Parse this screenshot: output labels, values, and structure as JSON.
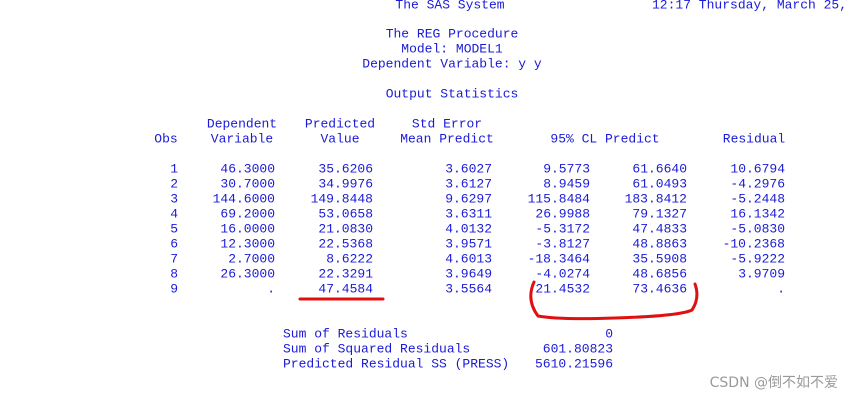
{
  "header": {
    "system": "The SAS System",
    "timestamp": "12:17 Thursday, March 25,"
  },
  "procedure": {
    "title": "The REG Procedure",
    "model": "Model: MODEL1",
    "dependent": "Dependent Variable: y y"
  },
  "section_title": "Output Statistics",
  "table": {
    "columns": [
      {
        "lines": [
          "Obs"
        ]
      },
      {
        "lines": [
          "Dependent",
          "Variable"
        ]
      },
      {
        "lines": [
          "Predicted",
          "Value"
        ]
      },
      {
        "lines": [
          "Std Error",
          "Mean Predict"
        ]
      },
      {
        "lines": [
          "95% CL Predict"
        ]
      },
      {
        "lines": [
          "Residual"
        ]
      }
    ],
    "rows": [
      [
        "1",
        "46.3000",
        "35.6206",
        "3.6027",
        "9.5773",
        "61.6640",
        "10.6794"
      ],
      [
        "2",
        "30.7000",
        "34.9976",
        "3.6127",
        "8.9459",
        "61.0493",
        "-4.2976"
      ],
      [
        "3",
        "144.6000",
        "149.8448",
        "9.6297",
        "115.8484",
        "183.8412",
        "-5.2448"
      ],
      [
        "4",
        "69.2000",
        "53.0658",
        "3.6311",
        "26.9988",
        "79.1327",
        "16.1342"
      ],
      [
        "5",
        "16.0000",
        "21.0830",
        "4.0132",
        "-5.3172",
        "47.4833",
        "-5.0830"
      ],
      [
        "6",
        "12.3000",
        "22.5368",
        "3.9571",
        "-3.8127",
        "48.8863",
        "-10.2368"
      ],
      [
        "7",
        "2.7000",
        "8.6222",
        "4.6013",
        "-18.3464",
        "35.5908",
        "-5.9222"
      ],
      [
        "8",
        "26.3000",
        "22.3291",
        "3.9649",
        "-4.0274",
        "48.6856",
        "3.9709"
      ],
      [
        "9",
        ".",
        "47.4584",
        "3.5564",
        "21.4532",
        "73.4636",
        "."
      ]
    ]
  },
  "summary": [
    [
      "Sum of Residuals",
      "0"
    ],
    [
      "Sum of Squared Residuals",
      "601.80823"
    ],
    [
      "Predicted Residual SS (PRESS)",
      "5610.21596"
    ]
  ],
  "watermark": "CSDN @倒不如不爱"
}
